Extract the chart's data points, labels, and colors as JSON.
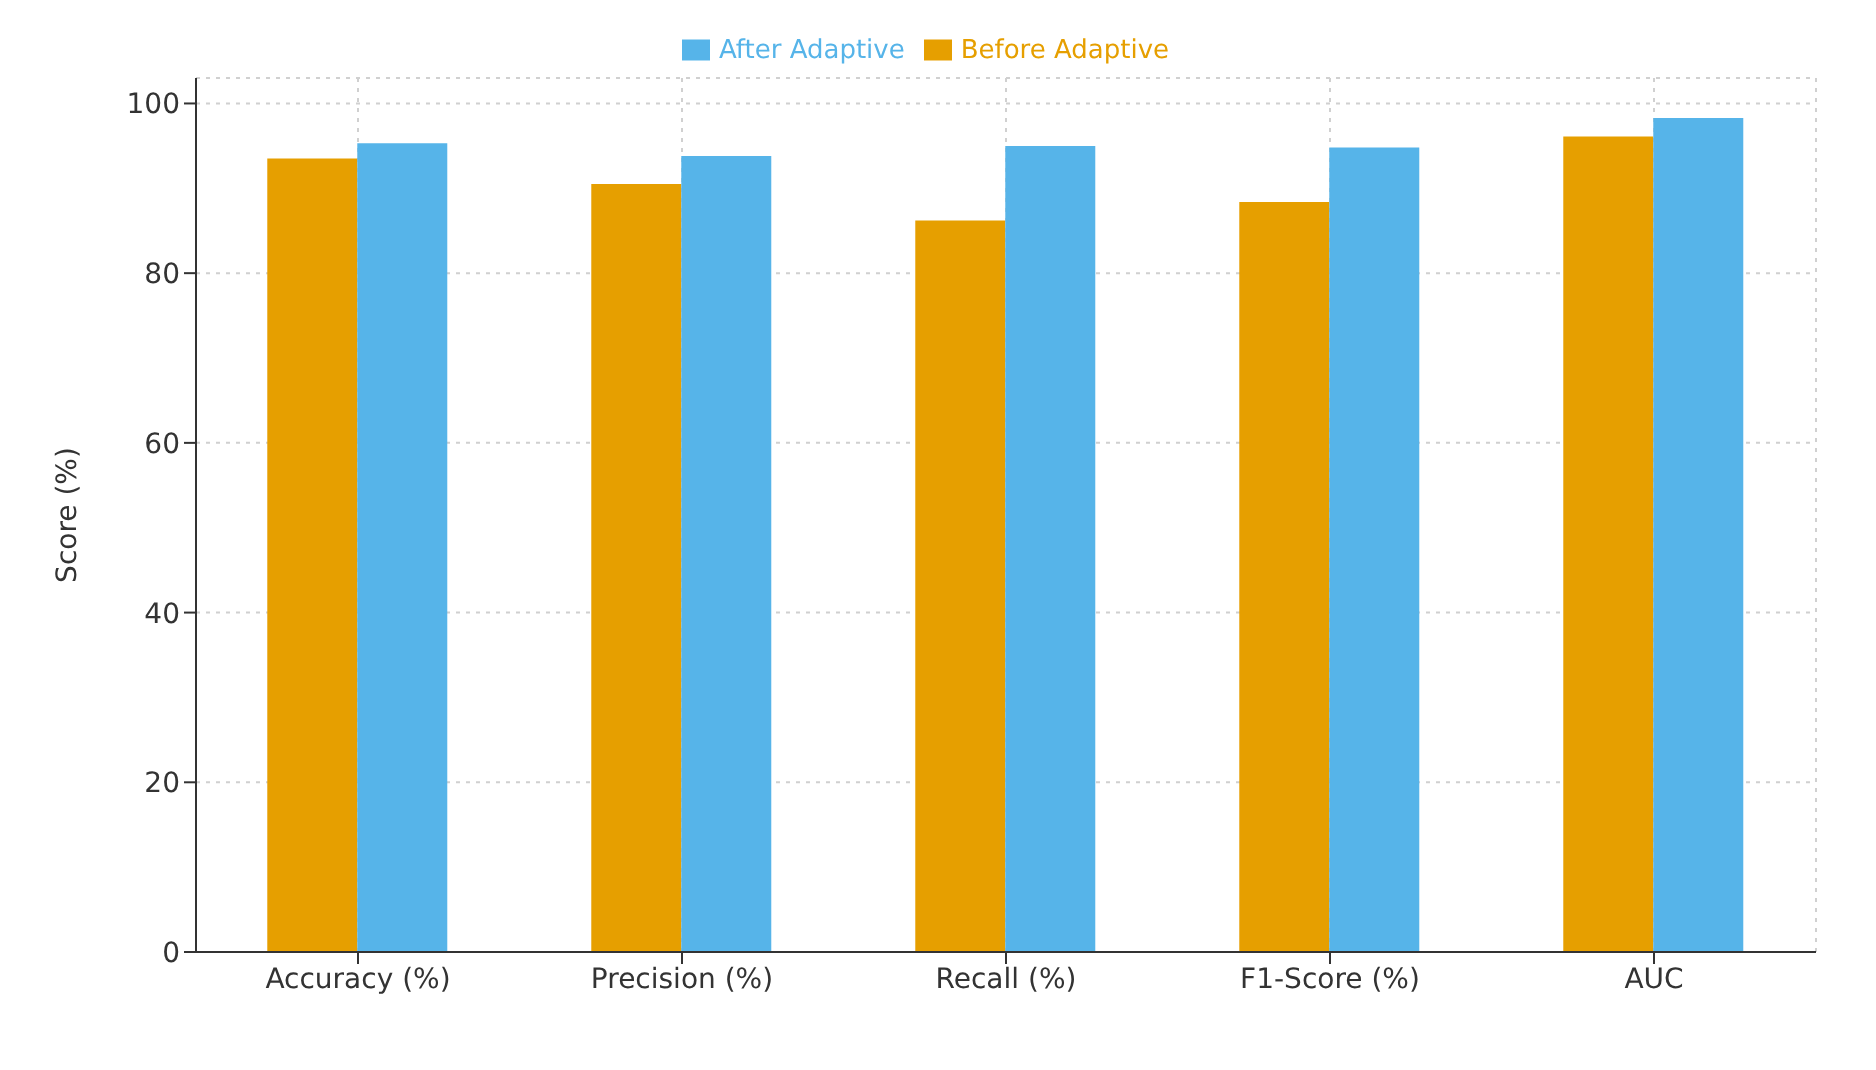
{
  "chart_data": {
    "type": "bar",
    "categories": [
      "Accuracy (%)",
      "Precision (%)",
      "Recall (%)",
      "F1-Score (%)",
      "AUC"
    ],
    "series": [
      {
        "name": "Before Adaptive",
        "color": "#e69f00",
        "values": [
          93.5,
          90.5,
          86.2,
          88.4,
          96.1
        ]
      },
      {
        "name": "After Adaptive",
        "color": "#56b4e9",
        "values": [
          95.3,
          93.8,
          95.0,
          94.8,
          98.3
        ]
      }
    ],
    "ylabel": "Score (%)",
    "ylim": [
      0,
      103
    ],
    "yticks": [
      0,
      20,
      40,
      60,
      80,
      100
    ],
    "grid": true,
    "legend": "top"
  }
}
